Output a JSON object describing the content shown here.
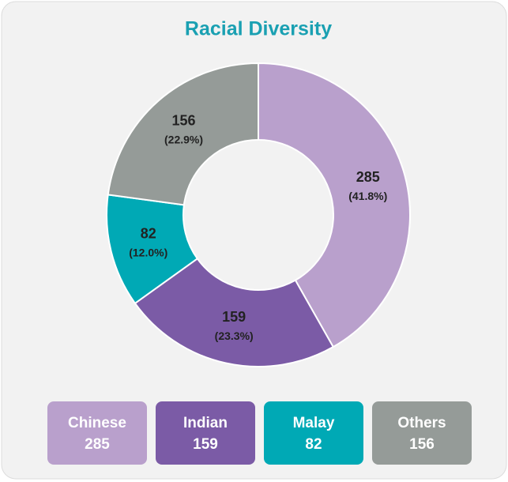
{
  "chart_data": {
    "type": "donut",
    "title": "Racial Diversity",
    "categories": [
      "Chinese",
      "Indian",
      "Malay",
      "Others"
    ],
    "values": [
      285,
      159,
      82,
      156
    ],
    "percent_labels": [
      "(41.8%)",
      "(23.3%)",
      "(12.0%)",
      "(22.9%)"
    ],
    "colors": [
      "#b9a0cc",
      "#7b5ba6",
      "#00a9b5",
      "#959b98"
    ]
  }
}
